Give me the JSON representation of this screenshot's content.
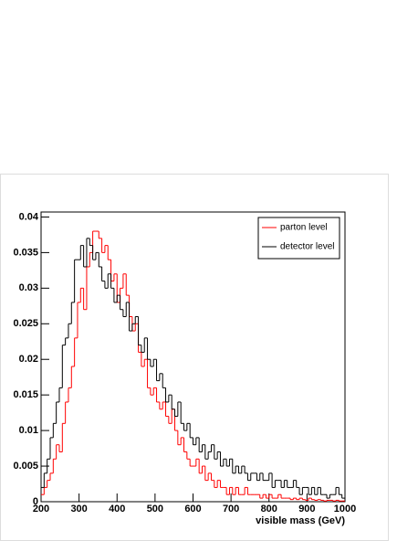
{
  "chart_data": {
    "type": "histogram",
    "x_label": "visible mass (GeV)",
    "bins": [
      200,
      208,
      216,
      224,
      232,
      240,
      248,
      256,
      264,
      272,
      280,
      288,
      296,
      304,
      312,
      320,
      328,
      336,
      344,
      352,
      360,
      368,
      376,
      384,
      392,
      400,
      408,
      416,
      424,
      432,
      440,
      448,
      456,
      464,
      472,
      480,
      488,
      496,
      504,
      512,
      520,
      528,
      536,
      544,
      552,
      560,
      568,
      576,
      584,
      592,
      600,
      608,
      616,
      624,
      632,
      640,
      648,
      656,
      664,
      672,
      680,
      688,
      696,
      704,
      712,
      720,
      728,
      736,
      744,
      752,
      760,
      768,
      776,
      784,
      792,
      800,
      808,
      816,
      824,
      832,
      840,
      848,
      856,
      864,
      872,
      880,
      888,
      896,
      904,
      912,
      920,
      928,
      936,
      944,
      952,
      960,
      968,
      976,
      984,
      992,
      1000
    ],
    "series": [
      {
        "name": "parton level",
        "color": "#ff0000",
        "values": [
          0.001,
          0.002,
          0.003,
          0.004,
          0.006,
          0.008,
          0.007,
          0.011,
          0.014,
          0.016,
          0.019,
          0.023,
          0.028,
          0.03,
          0.027,
          0.033,
          0.035,
          0.038,
          0.038,
          0.037,
          0.035,
          0.036,
          0.034,
          0.031,
          0.032,
          0.028,
          0.03,
          0.032,
          0.029,
          0.026,
          0.024,
          0.025,
          0.021,
          0.019,
          0.02,
          0.016,
          0.015,
          0.016,
          0.014,
          0.013,
          0.014,
          0.012,
          0.011,
          0.013,
          0.01,
          0.008,
          0.009,
          0.007,
          0.006,
          0.005,
          0.005,
          0.006,
          0.004,
          0.005,
          0.003,
          0.004,
          0.003,
          0.002,
          0.003,
          0.002,
          0.002,
          0.001,
          0.002,
          0.001,
          0.002,
          0.001,
          0.001,
          0.002,
          0.001,
          0.001,
          0.001,
          0.001,
          0.0005,
          0.001,
          0.0005,
          0.001,
          0.0005,
          0.0005,
          0.001,
          0.0005,
          0.0005,
          0.0005,
          0.0003,
          0.0005,
          0.0003,
          0.0005,
          0.0003,
          0.0002,
          0.0005,
          0.0003,
          0.0002,
          0.0003,
          0.0002,
          0.0001,
          0.0002,
          0.0002,
          0.0001,
          0.0002,
          0.0001,
          0.0001
        ]
      },
      {
        "name": "detector level",
        "color": "#000000",
        "values": [
          0.002,
          0.004,
          0.006,
          0.009,
          0.011,
          0.014,
          0.016,
          0.022,
          0.023,
          0.025,
          0.028,
          0.034,
          0.034,
          0.036,
          0.033,
          0.037,
          0.036,
          0.034,
          0.035,
          0.033,
          0.031,
          0.03,
          0.032,
          0.03,
          0.028,
          0.029,
          0.027,
          0.026,
          0.028,
          0.024,
          0.025,
          0.026,
          0.022,
          0.021,
          0.023,
          0.02,
          0.019,
          0.02,
          0.017,
          0.018,
          0.016,
          0.014,
          0.015,
          0.013,
          0.012,
          0.014,
          0.011,
          0.01,
          0.011,
          0.009,
          0.008,
          0.009,
          0.007,
          0.008,
          0.006,
          0.007,
          0.008,
          0.006,
          0.007,
          0.005,
          0.006,
          0.005,
          0.006,
          0.004,
          0.005,
          0.004,
          0.005,
          0.004,
          0.003,
          0.004,
          0.004,
          0.003,
          0.004,
          0.003,
          0.003,
          0.004,
          0.002,
          0.003,
          0.003,
          0.002,
          0.003,
          0.002,
          0.002,
          0.003,
          0.002,
          0.001,
          0.002,
          0.002,
          0.001,
          0.002,
          0.001,
          0.002,
          0.001,
          0.001,
          0.0005,
          0.001,
          0.001,
          0.002,
          0.001,
          0.0005
        ]
      }
    ],
    "xlim": [
      200,
      1000
    ],
    "xticks": [
      200,
      300,
      400,
      500,
      600,
      700,
      800,
      900,
      1000
    ],
    "ylim": [
      0,
      0.0407
    ],
    "yticks": [
      0,
      0.005,
      0.01,
      0.015,
      0.02,
      0.025,
      0.03,
      0.035,
      0.04
    ],
    "legend": "top-right"
  }
}
